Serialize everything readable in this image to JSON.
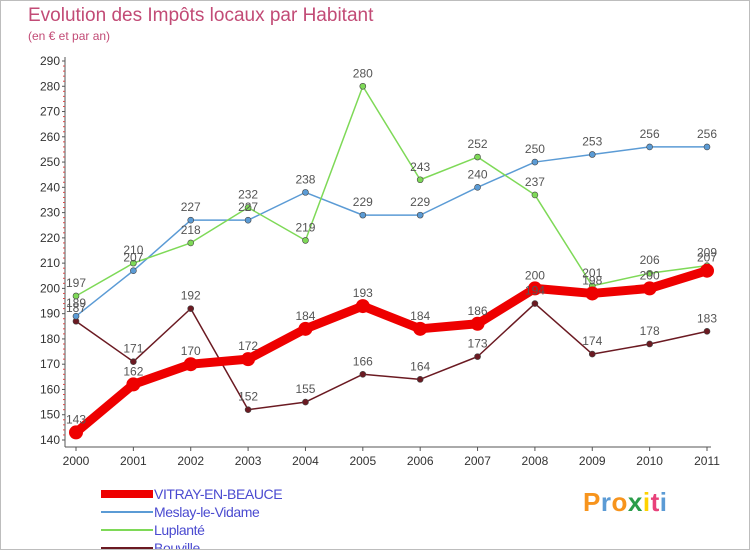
{
  "chart_data": {
    "type": "line",
    "title": "Evolution des Impôts locaux par Habitant",
    "subtitle": "(en € et par an)",
    "x": [
      "2000",
      "2001",
      "2002",
      "2003",
      "2004",
      "2005",
      "2006",
      "2007",
      "2008",
      "2009",
      "2010",
      "2011"
    ],
    "ylim": [
      140,
      290
    ],
    "yticks": [
      140,
      150,
      160,
      170,
      180,
      190,
      200,
      210,
      220,
      230,
      240,
      250,
      260,
      270,
      280,
      290
    ],
    "grid": false,
    "legend_position": "bottom-left",
    "series": [
      {
        "name": "VITRAY-EN-BEAUCE",
        "color": "#ee0000",
        "values": [
          143,
          162,
          170,
          172,
          184,
          193,
          184,
          186,
          200,
          198,
          200,
          207
        ]
      },
      {
        "name": "Meslay-le-Vidame",
        "color": "#5b9bd5",
        "values": [
          189,
          207,
          227,
          227,
          238,
          229,
          229,
          240,
          250,
          253,
          256,
          256
        ]
      },
      {
        "name": "Luplanté",
        "color": "#7ed957",
        "values": [
          197,
          210,
          218,
          232,
          219,
          280,
          243,
          252,
          237,
          201,
          206,
          209
        ]
      },
      {
        "name": "Bouville",
        "color": "#6b1a22",
        "values": [
          187,
          171,
          192,
          152,
          155,
          166,
          164,
          173,
          194,
          174,
          178,
          183
        ]
      }
    ]
  },
  "logo": {
    "letters": [
      "P",
      "r",
      "o",
      "x",
      "i",
      "t",
      "i"
    ],
    "colors": [
      "#f7941d",
      "#5b9bd5",
      "#f7941d",
      "#2a9d4a",
      "#ffd200",
      "#e8417a",
      "#5b9bd5"
    ]
  },
  "colors": {
    "axis": "#555555",
    "tick_minor": "#d94a4a",
    "title": "#c24b76",
    "legend_text": "#4a4ad0",
    "value_label": "#555555"
  }
}
